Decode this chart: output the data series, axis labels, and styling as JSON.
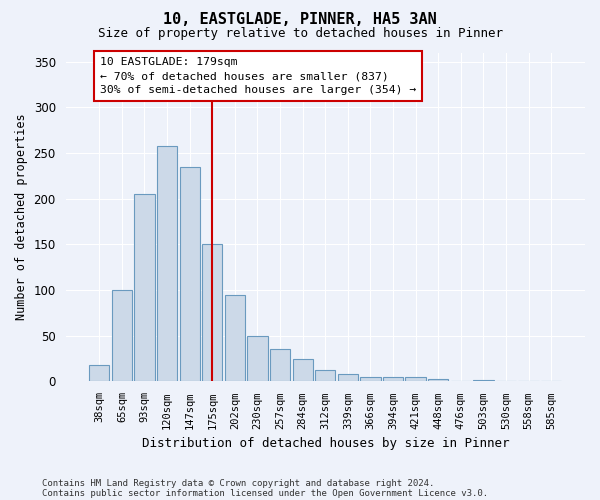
{
  "title1": "10, EASTGLADE, PINNER, HA5 3AN",
  "title2": "Size of property relative to detached houses in Pinner",
  "xlabel": "Distribution of detached houses by size in Pinner",
  "ylabel": "Number of detached properties",
  "categories": [
    "38sqm",
    "65sqm",
    "93sqm",
    "120sqm",
    "147sqm",
    "175sqm",
    "202sqm",
    "230sqm",
    "257sqm",
    "284sqm",
    "312sqm",
    "339sqm",
    "366sqm",
    "394sqm",
    "421sqm",
    "448sqm",
    "476sqm",
    "503sqm",
    "530sqm",
    "558sqm",
    "585sqm"
  ],
  "values": [
    18,
    100,
    205,
    258,
    235,
    150,
    95,
    50,
    35,
    25,
    13,
    8,
    5,
    5,
    5,
    3,
    1,
    2,
    1,
    0,
    1
  ],
  "bar_color": "#ccd9e8",
  "bar_edge_color": "#6a9abf",
  "vline_x_idx": 5,
  "vline_color": "#cc0000",
  "annotation_text": "10 EASTGLADE: 179sqm\n← 70% of detached houses are smaller (837)\n30% of semi-detached houses are larger (354) →",
  "annotation_box_color": "#ffffff",
  "annotation_box_edge": "#cc0000",
  "bg_color": "#eef2fa",
  "grid_color": "#ffffff",
  "ylim": [
    0,
    360
  ],
  "yticks": [
    0,
    50,
    100,
    150,
    200,
    250,
    300,
    350
  ],
  "footer1": "Contains HM Land Registry data © Crown copyright and database right 2024.",
  "footer2": "Contains public sector information licensed under the Open Government Licence v3.0."
}
